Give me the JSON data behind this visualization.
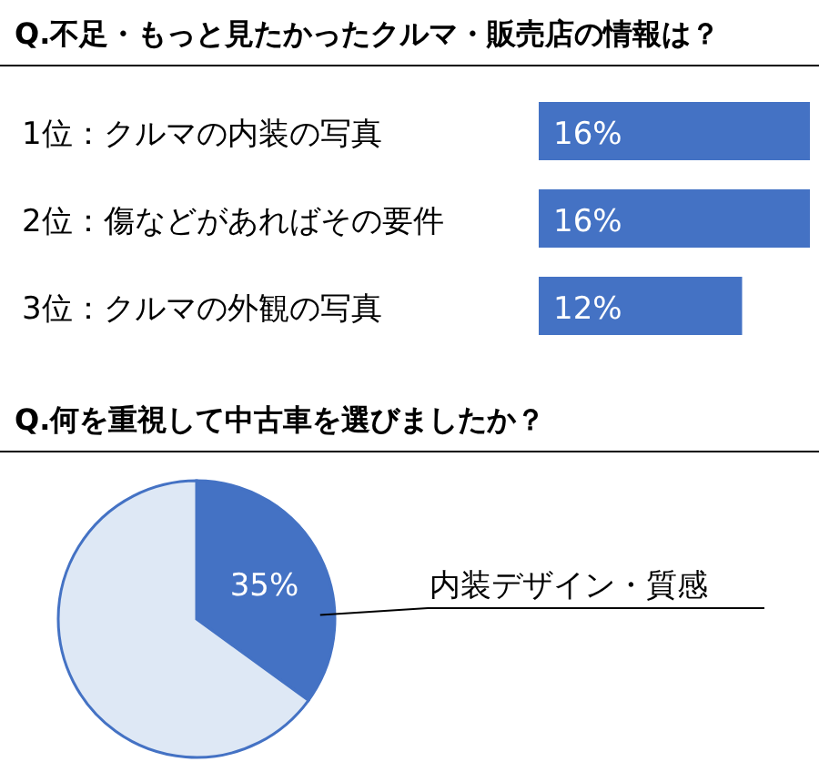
{
  "chart_data": [
    {
      "type": "bar",
      "orientation": "horizontal",
      "title": "Q.不足・もっと見たかったクルマ・販売店の情報は？",
      "categories": [
        "1位：クルマの内装の写真",
        "2位：傷などがあればその要件",
        "3位：クルマの外観の写真"
      ],
      "values": [
        16,
        16,
        12
      ],
      "value_labels": [
        "16%",
        "16%",
        "12%"
      ],
      "color": "#4472c4"
    },
    {
      "type": "pie",
      "title": "Q.何を重視して中古車を選びましたか？",
      "categories": [
        "内装デザイン・質感",
        null
      ],
      "values": [
        35,
        65
      ],
      "value_labels": [
        "35%",
        null
      ],
      "colors": [
        "#4472c4",
        "#dee8f5"
      ]
    }
  ]
}
